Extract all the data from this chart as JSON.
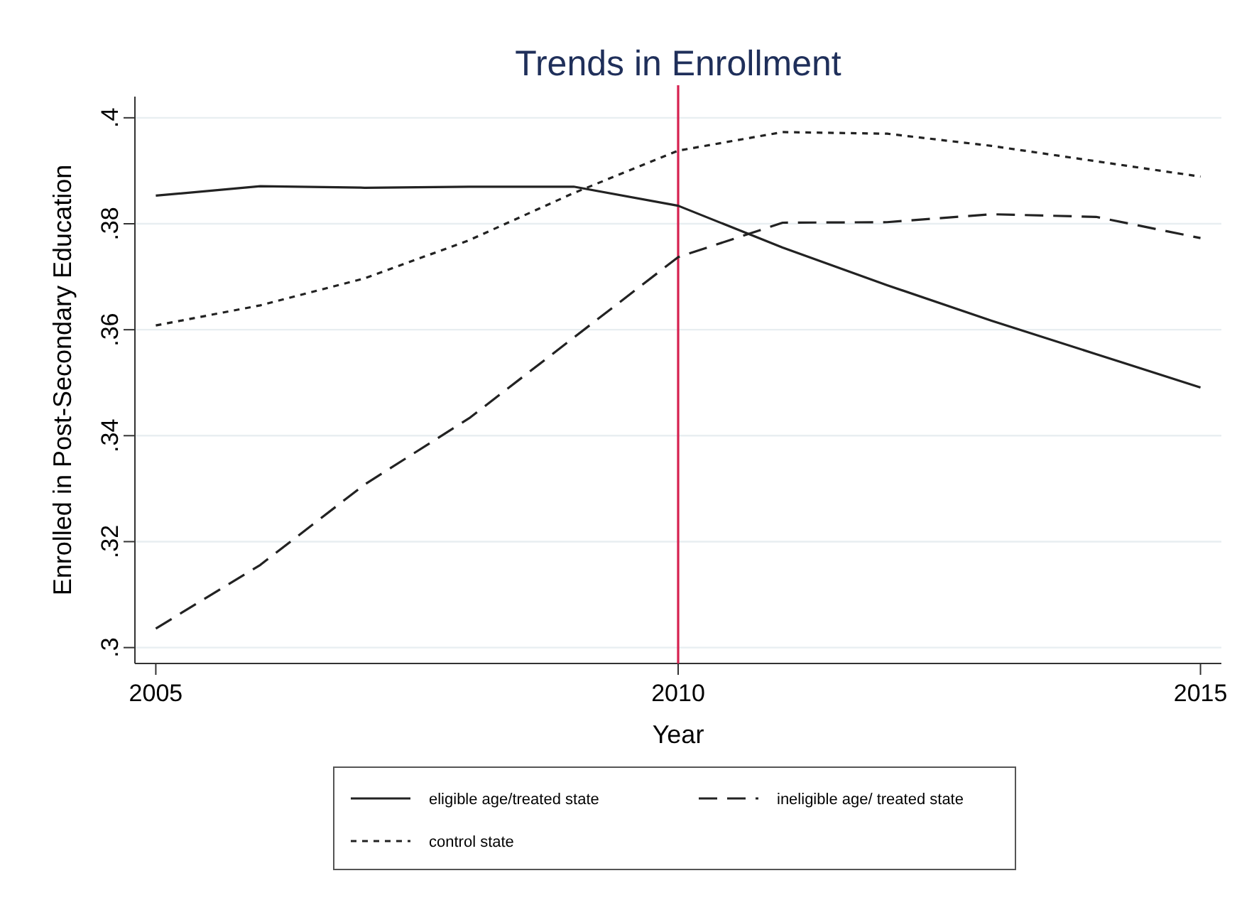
{
  "chart_data": {
    "type": "line",
    "title": "Trends in Enrollment",
    "xlabel": "Year",
    "ylabel": "Enrolled in Post-Secondary Education",
    "x": [
      2005,
      2006,
      2007,
      2008,
      2009,
      2010,
      2011,
      2012,
      2013,
      2014,
      2015
    ],
    "series": [
      {
        "name": "eligible age/treated state",
        "color": "#222222",
        "line_style": "solid",
        "values": [
          0.3853,
          0.3871,
          0.3868,
          0.387,
          0.387,
          0.3834,
          0.3755,
          0.3684,
          0.3617,
          0.3554,
          0.3491
        ]
      },
      {
        "name": "ineligible age/ treated state",
        "color": "#222222",
        "line_style": "dashed",
        "values": [
          0.3036,
          0.3156,
          0.3308,
          0.3433,
          0.3585,
          0.3737,
          0.3802,
          0.3803,
          0.3818,
          0.3813,
          0.3773
        ]
      },
      {
        "name": "control state",
        "color": "#222222",
        "line_style": "dotted",
        "values": [
          0.3608,
          0.3646,
          0.3697,
          0.3769,
          0.3858,
          0.3938,
          0.3973,
          0.397,
          0.3947,
          0.3918,
          0.3889
        ]
      }
    ],
    "xlim": [
      2004.8,
      2015.2
    ],
    "xticks": [
      2005,
      2010,
      2015
    ],
    "ylim": [
      0.297,
      0.404
    ],
    "yticks": [
      {
        "value": 0.3,
        "label": ".3"
      },
      {
        "value": 0.32,
        "label": ".32"
      },
      {
        "value": 0.34,
        "label": ".34"
      },
      {
        "value": 0.36,
        "label": ".36"
      },
      {
        "value": 0.38,
        "label": ".38"
      },
      {
        "value": 0.4,
        "label": ".4"
      }
    ],
    "ref_lines": [
      {
        "axis": "x",
        "value": 2010,
        "color": "#d6204f"
      }
    ],
    "grid": "y",
    "legend": "bottom",
    "marker": "none"
  }
}
